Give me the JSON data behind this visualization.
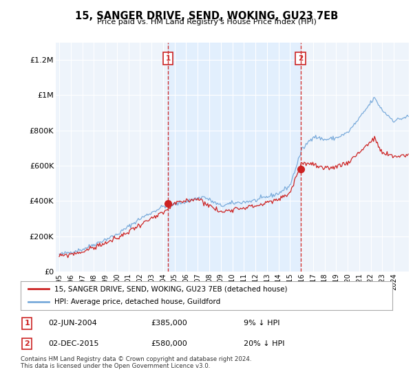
{
  "title": "15, SANGER DRIVE, SEND, WOKING, GU23 7EB",
  "subtitle": "Price paid vs. HM Land Registry's House Price Index (HPI)",
  "ylabel_ticks": [
    "£0",
    "£200K",
    "£400K",
    "£600K",
    "£800K",
    "£1M",
    "£1.2M"
  ],
  "ytick_vals": [
    0,
    200000,
    400000,
    600000,
    800000,
    1000000,
    1200000
  ],
  "ylim": [
    0,
    1300000
  ],
  "xlim_start": 1994.7,
  "xlim_end": 2025.3,
  "transaction1_date": 2004.42,
  "transaction1_price": 385000,
  "transaction2_date": 2015.92,
  "transaction2_price": 580000,
  "hpi_color": "#7aabdb",
  "price_color": "#cc2222",
  "vline_color": "#cc3333",
  "shade_color": "#ddeeff",
  "background_plot": "#eef4fb",
  "legend_label_red": "15, SANGER DRIVE, SEND, WOKING, GU23 7EB (detached house)",
  "legend_label_blue": "HPI: Average price, detached house, Guildford",
  "footnote": "Contains HM Land Registry data © Crown copyright and database right 2024.\nThis data is licensed under the Open Government Licence v3.0.",
  "xtick_years": [
    1995,
    1996,
    1997,
    1998,
    1999,
    2000,
    2001,
    2002,
    2003,
    2004,
    2005,
    2006,
    2007,
    2008,
    2009,
    2010,
    2011,
    2012,
    2013,
    2014,
    2015,
    2016,
    2017,
    2018,
    2019,
    2020,
    2021,
    2022,
    2023,
    2024
  ]
}
